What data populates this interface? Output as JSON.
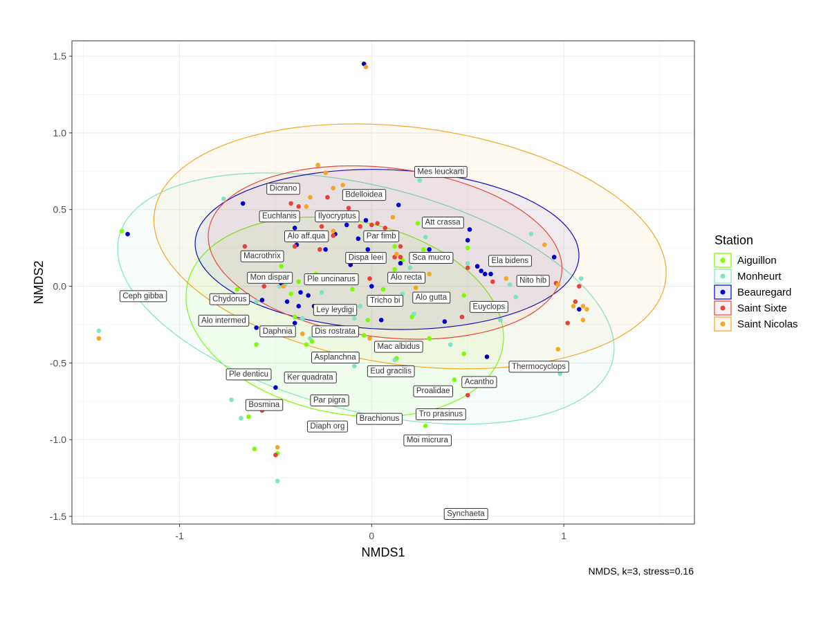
{
  "chart_data": {
    "type": "scatter",
    "xlabel": "NMDS1",
    "ylabel": "NMDS2",
    "caption": "NMDS, k=3, stress=0.16",
    "xlim": [
      -1.56,
      1.68
    ],
    "ylim": [
      -1.55,
      1.6
    ],
    "xticks": [
      -1,
      0,
      1
    ],
    "xtick_labels": [
      "-1",
      "0",
      "1"
    ],
    "yticks": [
      -1.5,
      -1.0,
      -0.5,
      0.0,
      0.5,
      1.0,
      1.5
    ],
    "ytick_labels": [
      "-1.5",
      "-1.0",
      "-0.5",
      "0.0",
      "0.5",
      "1.0",
      "1.5"
    ],
    "grid": true,
    "legend": {
      "title": "Station",
      "position": "right"
    },
    "series": [
      {
        "name": "Aiguillon",
        "color": "#7CFC00",
        "ellipse": {
          "cx": -0.14,
          "cy": -0.2,
          "rx": 0.85,
          "ry": 0.62,
          "angle": -20
        },
        "points": [
          [
            -1.3,
            0.36
          ],
          [
            -0.7,
            -0.02
          ],
          [
            -0.6,
            -0.38
          ],
          [
            -0.64,
            -0.85
          ],
          [
            -0.61,
            -1.06
          ],
          [
            -0.49,
            -1.09
          ],
          [
            -0.47,
            0.13
          ],
          [
            -0.42,
            -0.05
          ],
          [
            -0.38,
            0.03
          ],
          [
            -0.4,
            -0.2
          ],
          [
            -0.34,
            -0.38
          ],
          [
            -0.31,
            -0.36
          ],
          [
            -0.29,
            0.08
          ],
          [
            -0.1,
            -0.02
          ],
          [
            -0.02,
            -0.22
          ],
          [
            -0.04,
            -0.32
          ],
          [
            0.12,
            0.26
          ],
          [
            0.16,
            0.17
          ],
          [
            0.21,
            -0.2
          ],
          [
            0.24,
            0.41
          ],
          [
            0.27,
            0.24
          ],
          [
            0.3,
            -0.34
          ],
          [
            0.28,
            -0.91
          ],
          [
            0.43,
            -0.61
          ],
          [
            0.48,
            -0.44
          ],
          [
            0.5,
            0.25
          ],
          [
            0.48,
            -0.06
          ],
          [
            0.13,
            -0.47
          ],
          [
            0.06,
            -0.02
          ],
          [
            0.12,
            0.11
          ]
        ]
      },
      {
        "name": "Monheurt",
        "color": "#7FE3C4",
        "ellipse": {
          "cx": -0.03,
          "cy": -0.08,
          "rx": 1.35,
          "ry": 0.72,
          "angle": -20
        },
        "points": [
          [
            -1.42,
            -0.29
          ],
          [
            -0.77,
            0.57
          ],
          [
            -0.73,
            -0.74
          ],
          [
            -0.68,
            -0.86
          ],
          [
            -0.6,
            -0.1
          ],
          [
            -0.48,
            0.0
          ],
          [
            -0.45,
            0.01
          ],
          [
            -0.49,
            -1.27
          ],
          [
            -0.36,
            -0.21
          ],
          [
            -0.32,
            -0.34
          ],
          [
            -0.26,
            -0.04
          ],
          [
            -0.14,
            0.05
          ],
          [
            -0.09,
            -0.21
          ],
          [
            -0.06,
            -0.13
          ],
          [
            0.12,
            -0.48
          ],
          [
            0.16,
            -0.05
          ],
          [
            0.22,
            -0.18
          ],
          [
            0.25,
            0.69
          ],
          [
            0.28,
            0.32
          ],
          [
            0.41,
            -0.38
          ],
          [
            0.5,
            0.15
          ],
          [
            0.67,
            -0.22
          ],
          [
            0.72,
            0.01
          ],
          [
            0.75,
            -0.07
          ],
          [
            0.83,
            0.34
          ],
          [
            0.98,
            -0.57
          ],
          [
            1.09,
            0.05
          ],
          [
            -0.09,
            -0.52
          ],
          [
            0.2,
            0.12
          ]
        ]
      },
      {
        "name": "Beauregard",
        "color": "#0000CD",
        "ellipse": {
          "cx": 0.08,
          "cy": 0.24,
          "rx": 1.0,
          "ry": 0.52,
          "angle": -3
        },
        "points": [
          [
            -1.27,
            0.34
          ],
          [
            -0.67,
            0.54
          ],
          [
            -0.6,
            -0.27
          ],
          [
            -0.57,
            -0.09
          ],
          [
            -0.5,
            -0.66
          ],
          [
            -0.47,
            0.02
          ],
          [
            -0.44,
            -0.1
          ],
          [
            -0.4,
            -0.24
          ],
          [
            -0.4,
            0.38
          ],
          [
            -0.39,
            0.27
          ],
          [
            -0.38,
            -0.13
          ],
          [
            -0.37,
            -0.04
          ],
          [
            -0.33,
            -0.06
          ],
          [
            -0.3,
            -0.13
          ],
          [
            -0.24,
            0.24
          ],
          [
            -0.19,
            0.34
          ],
          [
            -0.13,
            0.4
          ],
          [
            -0.11,
            0.14
          ],
          [
            -0.07,
            0.31
          ],
          [
            -0.04,
            1.45
          ],
          [
            -0.03,
            0.43
          ],
          [
            -0.02,
            0.24
          ],
          [
            0.05,
            -0.22
          ],
          [
            0.14,
            0.53
          ],
          [
            0.15,
            0.15
          ],
          [
            0.3,
            0.24
          ],
          [
            0.37,
            0.21
          ],
          [
            0.38,
            -0.07
          ],
          [
            0.38,
            -0.23
          ],
          [
            0.5,
            0.3
          ],
          [
            0.51,
            0.37
          ],
          [
            0.55,
            0.13
          ],
          [
            0.57,
            0.1
          ],
          [
            0.59,
            0.08
          ],
          [
            0.6,
            -0.46
          ],
          [
            0.62,
            0.08
          ],
          [
            0.95,
            0.19
          ],
          [
            1.08,
            -0.15
          ],
          [
            0.0,
            0.0
          ]
        ]
      },
      {
        "name": "Saint Sixte",
        "color": "#E8413C",
        "ellipse": {
          "cx": 0.07,
          "cy": 0.22,
          "rx": 0.93,
          "ry": 0.55,
          "angle": -10
        },
        "points": [
          [
            -0.66,
            0.26
          ],
          [
            -0.57,
            -0.81
          ],
          [
            -0.56,
            0.0
          ],
          [
            -0.5,
            -1.1
          ],
          [
            -0.42,
            0.54
          ],
          [
            -0.4,
            0.26
          ],
          [
            -0.38,
            0.52
          ],
          [
            -0.36,
            0.32
          ],
          [
            -0.27,
            0.24
          ],
          [
            -0.26,
            0.39
          ],
          [
            -0.23,
            0.58
          ],
          [
            -0.2,
            0.33
          ],
          [
            -0.12,
            0.51
          ],
          [
            -0.06,
            0.39
          ],
          [
            -0.01,
            0.05
          ],
          [
            0.0,
            0.4
          ],
          [
            0.03,
            0.41
          ],
          [
            0.04,
            0.34
          ],
          [
            0.07,
            0.38
          ],
          [
            0.12,
            0.19
          ],
          [
            0.15,
            0.19
          ],
          [
            0.15,
            0.26
          ],
          [
            0.22,
            0.05
          ],
          [
            0.25,
            0.07
          ],
          [
            0.5,
            0.12
          ],
          [
            0.5,
            -0.71
          ],
          [
            0.47,
            -0.2
          ],
          [
            0.63,
            0.03
          ],
          [
            0.96,
            0.02
          ],
          [
            1.02,
            -0.24
          ],
          [
            1.06,
            -0.1
          ],
          [
            1.08,
            0.0
          ]
        ]
      },
      {
        "name": "Saint Nicolas",
        "color": "#F5A623",
        "ellipse": {
          "cx": 0.2,
          "cy": 0.26,
          "rx": 1.35,
          "ry": 0.77,
          "angle": -11
        },
        "points": [
          [
            -1.42,
            -0.34
          ],
          [
            -0.49,
            -1.05
          ],
          [
            -0.46,
            0.0
          ],
          [
            -0.36,
            -0.31
          ],
          [
            -0.34,
            0.52
          ],
          [
            -0.32,
            0.58
          ],
          [
            -0.28,
            0.79
          ],
          [
            -0.24,
            0.74
          ],
          [
            -0.2,
            0.36
          ],
          [
            -0.2,
            0.64
          ],
          [
            -0.15,
            0.66
          ],
          [
            -0.03,
            1.43
          ],
          [
            -0.01,
            -0.34
          ],
          [
            0.11,
            0.45
          ],
          [
            0.13,
            0.21
          ],
          [
            0.21,
            0.17
          ],
          [
            0.23,
            -0.01
          ],
          [
            0.3,
            0.08
          ],
          [
            0.7,
            0.05
          ],
          [
            0.9,
            0.27
          ],
          [
            0.97,
            0.01
          ],
          [
            0.97,
            -0.41
          ],
          [
            1.05,
            -0.13
          ],
          [
            1.1,
            -0.13
          ],
          [
            1.1,
            -0.22
          ],
          [
            1.12,
            -0.15
          ]
        ]
      }
    ],
    "species_labels": [
      {
        "text": "Mes leuckarti",
        "x": 0.36,
        "y": 0.75
      },
      {
        "text": "Dicrano",
        "x": -0.46,
        "y": 0.64
      },
      {
        "text": "Bdelloidea",
        "x": -0.04,
        "y": 0.6
      },
      {
        "text": "Euchlanis",
        "x": -0.48,
        "y": 0.46
      },
      {
        "text": "Ilyocryptus",
        "x": -0.18,
        "y": 0.46
      },
      {
        "text": "Att crassa",
        "x": 0.37,
        "y": 0.42
      },
      {
        "text": "Alo aff.qua",
        "x": -0.34,
        "y": 0.33
      },
      {
        "text": "Par fimb",
        "x": 0.05,
        "y": 0.33
      },
      {
        "text": "Macrothrix",
        "x": -0.57,
        "y": 0.2
      },
      {
        "text": "Dispa leei",
        "x": -0.03,
        "y": 0.19
      },
      {
        "text": "Sca mucro",
        "x": 0.31,
        "y": 0.19
      },
      {
        "text": "Ela bidens",
        "x": 0.72,
        "y": 0.17
      },
      {
        "text": "Mon dispar",
        "x": -0.53,
        "y": 0.06
      },
      {
        "text": "Ple uncinarus",
        "x": -0.21,
        "y": 0.05
      },
      {
        "text": "Alo recta",
        "x": 0.18,
        "y": 0.06
      },
      {
        "text": "Nito hib",
        "x": 0.84,
        "y": 0.04
      },
      {
        "text": "Ceph gibba",
        "x": -1.19,
        "y": -0.06
      },
      {
        "text": "Chydorus",
        "x": -0.74,
        "y": -0.08
      },
      {
        "text": "Alo gutta",
        "x": 0.31,
        "y": -0.07
      },
      {
        "text": "Tricho bi",
        "x": 0.07,
        "y": -0.09
      },
      {
        "text": "Ley leydigi",
        "x": -0.19,
        "y": -0.15
      },
      {
        "text": "Euyclops",
        "x": 0.61,
        "y": -0.13
      },
      {
        "text": "Alo intermed",
        "x": -0.77,
        "y": -0.22
      },
      {
        "text": "Daphnia",
        "x": -0.49,
        "y": -0.29
      },
      {
        "text": "Dis rostrata",
        "x": -0.19,
        "y": -0.29
      },
      {
        "text": "Mac albidus",
        "x": 0.14,
        "y": -0.39
      },
      {
        "text": "Asplanchna",
        "x": -0.19,
        "y": -0.46
      },
      {
        "text": "Thermocyclops",
        "x": 0.87,
        "y": -0.52
      },
      {
        "text": "Eud gracilis",
        "x": 0.1,
        "y": -0.55
      },
      {
        "text": "Ple denticu",
        "x": -0.64,
        "y": -0.57
      },
      {
        "text": "Ker quadrata",
        "x": -0.32,
        "y": -0.59
      },
      {
        "text": "Acantho",
        "x": 0.56,
        "y": -0.62
      },
      {
        "text": "Proalidae",
        "x": 0.32,
        "y": -0.68
      },
      {
        "text": "Par pigra",
        "x": -0.22,
        "y": -0.74
      },
      {
        "text": "Bosmina",
        "x": -0.56,
        "y": -0.77
      },
      {
        "text": "Brachionus",
        "x": 0.04,
        "y": -0.86
      },
      {
        "text": "Tro prasinus",
        "x": 0.36,
        "y": -0.83
      },
      {
        "text": "Diaph org",
        "x": -0.23,
        "y": -0.91
      },
      {
        "text": "Moi micrura",
        "x": 0.29,
        "y": -1.0
      },
      {
        "text": "Synchaeta",
        "x": 0.49,
        "y": -1.48
      }
    ]
  }
}
